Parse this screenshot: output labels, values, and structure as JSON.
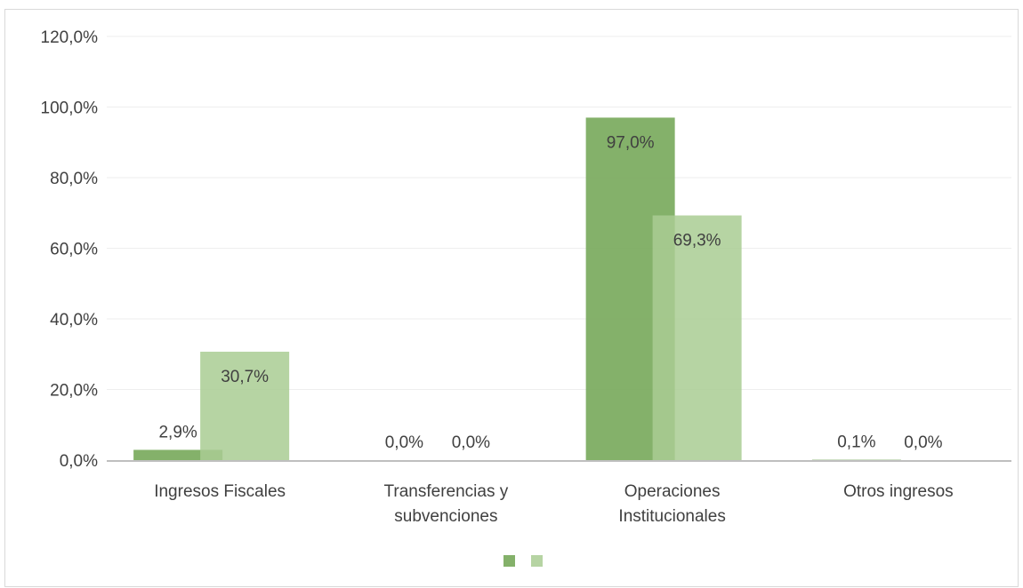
{
  "chart_data": {
    "type": "bar",
    "categories": [
      [
        "Ingresos Fiscales"
      ],
      [
        "Transferencias y",
        "subvenciones"
      ],
      [
        "Operaciones",
        "Institucionales"
      ],
      [
        "Otros ingresos"
      ]
    ],
    "series": [
      {
        "values": [
          2.9,
          0.0,
          97.0,
          0.1
        ],
        "labels": [
          "2,9%",
          "0,0%",
          "97,0%",
          "0,1%"
        ],
        "color": "#77a95a",
        "opacity": 0.9
      },
      {
        "values": [
          30.7,
          0.0,
          69.3,
          0.0
        ],
        "labels": [
          "30,7%",
          "0,0%",
          "69,3%",
          "0,0%"
        ],
        "color": "#a9cd93",
        "opacity": 0.85
      }
    ],
    "ylim": [
      0,
      120
    ],
    "yticks": [
      0,
      20,
      40,
      60,
      80,
      100,
      120
    ],
    "ytick_labels": [
      "0,0%",
      "20,0%",
      "40,0%",
      "60,0%",
      "80,0%",
      "100,0%",
      "120,0%"
    ],
    "grid": true,
    "legend": "bottom-center",
    "colors": {
      "gridline": "#eeeeee",
      "axis": "#bfbfbf",
      "text": "#404040"
    }
  }
}
